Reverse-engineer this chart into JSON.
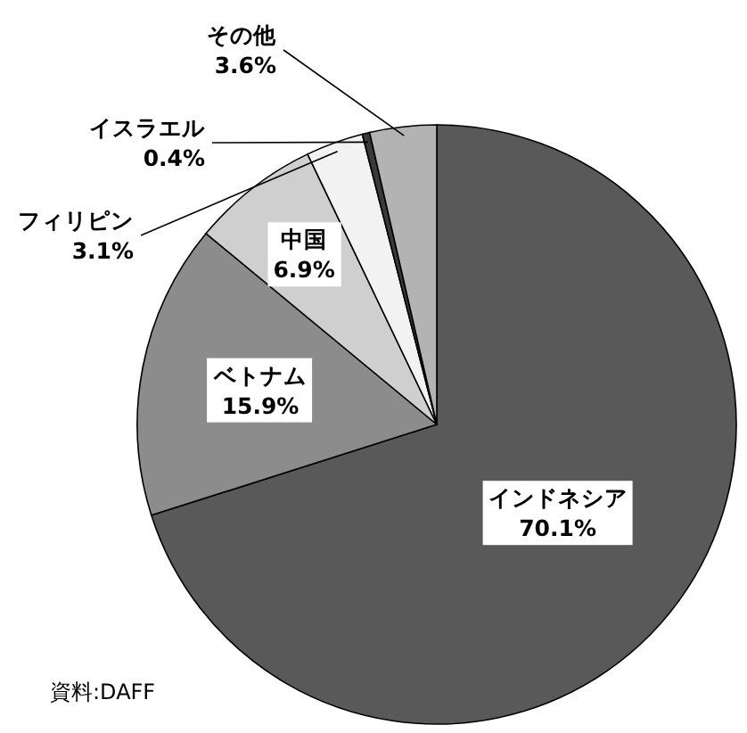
{
  "chart_data": {
    "type": "pie",
    "categories": [
      "インドネシア",
      "ベトナム",
      "中国",
      "フィリピン",
      "イスラエル",
      "その他"
    ],
    "values": [
      70.1,
      15.9,
      6.9,
      3.1,
      0.4,
      3.6
    ],
    "value_labels": [
      "70.1%",
      "15.9%",
      "6.9%",
      "3.1%",
      "0.4%",
      "3.6%"
    ],
    "colors": [
      "#595959",
      "#8c8c8c",
      "#cfcfcf",
      "#f2f2f2",
      "#3a3a3a",
      "#b3b3b3"
    ],
    "annotations": [
      "資料:DAFF"
    ]
  }
}
